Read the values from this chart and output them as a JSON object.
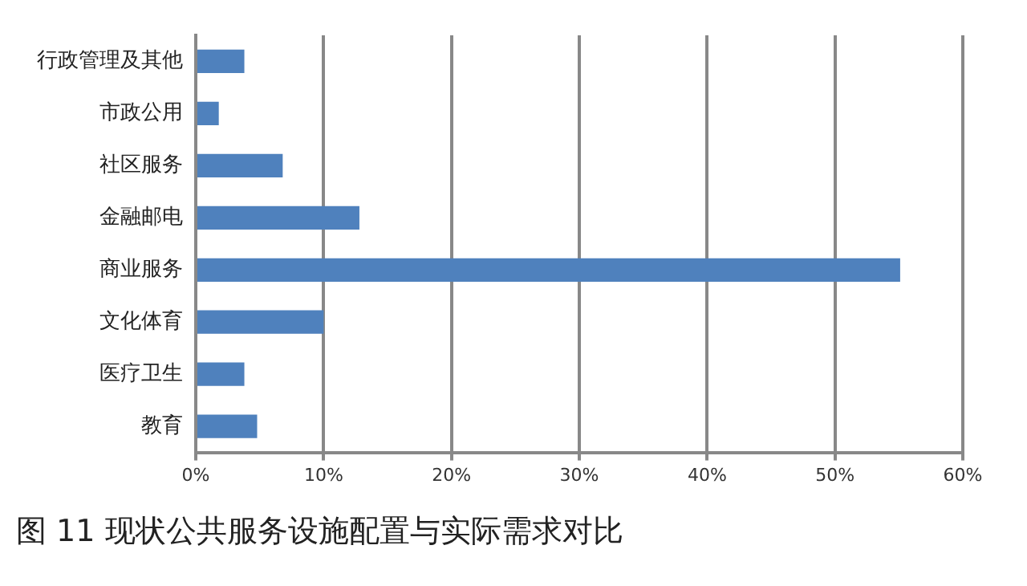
{
  "chart_data": {
    "type": "bar",
    "orientation": "horizontal",
    "title": "图 11  现状公共服务设施配置与实际需求对比",
    "categories": [
      "行政管理及其他",
      "市政公用",
      "社区服务",
      "金融邮电",
      "商业服务",
      "文化体育",
      "医疗卫生",
      "教育"
    ],
    "values": [
      3.8,
      1.8,
      6.8,
      12.8,
      55.1,
      10,
      3.8,
      4.8
    ],
    "color": "#4f81bd",
    "xlim": [
      0,
      60
    ],
    "xticks": [
      {
        "value": 0,
        "label": "0%"
      },
      {
        "value": 10,
        "label": "10%"
      },
      {
        "value": 20,
        "label": "20%"
      },
      {
        "value": 30,
        "label": "30%"
      },
      {
        "value": 40,
        "label": "40%"
      },
      {
        "value": 50,
        "label": "50%"
      },
      {
        "value": 60,
        "label": "60%"
      }
    ],
    "grid": "x",
    "legend": false
  }
}
